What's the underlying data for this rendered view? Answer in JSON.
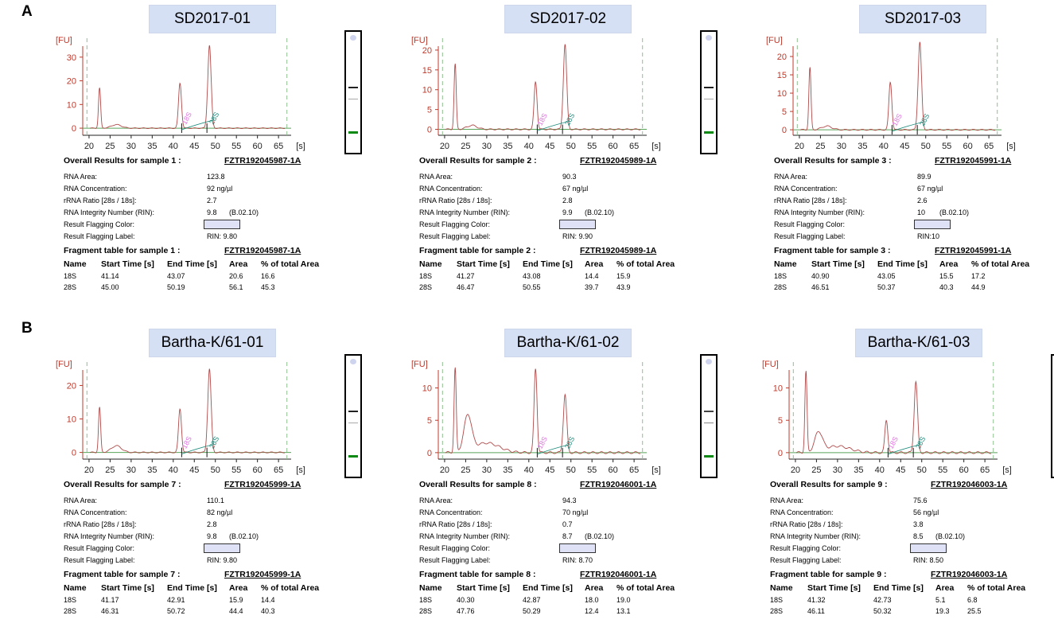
{
  "section_labels": [
    "A",
    "B"
  ],
  "chart_data": [
    {
      "type": "line",
      "title": "SD2017-01",
      "ylabel": "[FU]",
      "xunit": "[s]",
      "xlim": [
        18.5,
        68
      ],
      "xticks": [
        20,
        25,
        30,
        35,
        40,
        45,
        50,
        55,
        60,
        65
      ],
      "ylim": [
        -3,
        38
      ],
      "yticks": [
        0,
        10,
        20,
        30
      ],
      "markers": [
        19.5,
        67
      ],
      "bracket_points": [
        42,
        48
      ],
      "peak_labels": [
        {
          "text": "18S",
          "x": 43,
          "color": "#e070e0"
        },
        {
          "text": "28S",
          "x": 49.5,
          "color": "#1a8a7a"
        }
      ],
      "peaks": [
        {
          "x": 22.5,
          "h": 17,
          "w": 0.25
        },
        {
          "x": 26.5,
          "h": 1.5,
          "w": 1.2
        },
        {
          "x": 41.6,
          "h": 19,
          "w": 0.35
        },
        {
          "x": 48.6,
          "h": 35,
          "w": 0.4
        }
      ],
      "gel": {
        "band_color_top": "#222",
        "band_color_mid": "#aaa",
        "band_color_bottom": "#0a8a12"
      }
    },
    {
      "type": "line",
      "title": "SD2017-02",
      "ylabel": "[FU]",
      "xunit": "[s]",
      "xlim": [
        18.5,
        68
      ],
      "xticks": [
        20,
        25,
        30,
        35,
        40,
        45,
        50,
        55,
        60,
        65
      ],
      "ylim": [
        -1.5,
        23
      ],
      "yticks": [
        0,
        5,
        10,
        15,
        20
      ],
      "markers": [
        19.5,
        67
      ],
      "bracket_points": [
        42,
        48
      ],
      "peak_labels": [
        {
          "text": "18S",
          "x": 43,
          "color": "#e070e0"
        },
        {
          "text": "28S",
          "x": 49.5,
          "color": "#1a8a7a"
        }
      ],
      "peaks": [
        {
          "x": 22.5,
          "h": 16.5,
          "w": 0.25
        },
        {
          "x": 26.5,
          "h": 1,
          "w": 1.2
        },
        {
          "x": 41.6,
          "h": 12,
          "w": 0.35
        },
        {
          "x": 48.6,
          "h": 21.5,
          "w": 0.4
        }
      ],
      "gel": {
        "band_color_top": "#222",
        "band_color_mid": "#aaa",
        "band_color_bottom": "#0a8a12"
      }
    },
    {
      "type": "line",
      "title": "SD2017-03",
      "ylabel": "[FU]",
      "xunit": "[s]",
      "xlim": [
        18.5,
        68
      ],
      "xticks": [
        20,
        25,
        30,
        35,
        40,
        45,
        50,
        55,
        60,
        65
      ],
      "ylim": [
        -1.5,
        25
      ],
      "yticks": [
        0,
        5,
        10,
        15,
        20
      ],
      "markers": [
        19.5,
        67
      ],
      "bracket_points": [
        42,
        48
      ],
      "peak_labels": [
        {
          "text": "18S",
          "x": 43,
          "color": "#e070e0"
        },
        {
          "text": "28S",
          "x": 49.5,
          "color": "#1a8a7a"
        }
      ],
      "peaks": [
        {
          "x": 22.5,
          "h": 17,
          "w": 0.25
        },
        {
          "x": 26.5,
          "h": 1,
          "w": 1.2
        },
        {
          "x": 41.6,
          "h": 13,
          "w": 0.35
        },
        {
          "x": 48.6,
          "h": 24,
          "w": 0.4
        }
      ],
      "gel": {
        "band_color_top": "#222",
        "band_color_mid": "#aaa",
        "band_color_bottom": "#0a8a12"
      }
    },
    {
      "type": "line",
      "title": "Bartha-K/61-01",
      "ylabel": "[FU]",
      "xunit": "[s]",
      "xlim": [
        18.5,
        68
      ],
      "xticks": [
        20,
        25,
        30,
        35,
        40,
        45,
        50,
        55,
        60,
        65
      ],
      "ylim": [
        -2,
        27
      ],
      "yticks": [
        0,
        10,
        20
      ],
      "markers": [
        19.5,
        67
      ],
      "bracket_points": [
        42,
        48
      ],
      "peak_labels": [
        {
          "text": "18S",
          "x": 43,
          "color": "#e070e0"
        },
        {
          "text": "28S",
          "x": 49.5,
          "color": "#1a8a7a"
        }
      ],
      "peaks": [
        {
          "x": 22.5,
          "h": 13.5,
          "w": 0.25
        },
        {
          "x": 26.5,
          "h": 2,
          "w": 1.2
        },
        {
          "x": 41.6,
          "h": 13,
          "w": 0.35
        },
        {
          "x": 48.6,
          "h": 25,
          "w": 0.4
        }
      ],
      "gel": {
        "band_color_top": "#222",
        "band_color_mid": "#aaa",
        "band_color_bottom": "#0a8a12"
      }
    },
    {
      "type": "line",
      "title": "Bartha-K/61-02",
      "ylabel": "[FU]",
      "xunit": "[s]",
      "xlim": [
        18.5,
        68
      ],
      "xticks": [
        20,
        25,
        30,
        35,
        40,
        45,
        50,
        55,
        60,
        65
      ],
      "ylim": [
        -1,
        14
      ],
      "yticks": [
        0,
        5,
        10
      ],
      "markers": [
        19.5,
        67
      ],
      "bracket_points": [
        42,
        48
      ],
      "peak_labels": [
        {
          "text": "18S",
          "x": 43,
          "color": "#e070e0"
        },
        {
          "text": "28S",
          "x": 49.5,
          "color": "#1a8a7a"
        }
      ],
      "peaks": [
        {
          "x": 22.5,
          "h": 13,
          "w": 0.25
        },
        {
          "x": 25.5,
          "h": 5.5,
          "w": 0.9
        },
        {
          "x": 30,
          "h": 1.5,
          "w": 3
        },
        {
          "x": 41.6,
          "h": 13,
          "w": 0.35
        },
        {
          "x": 48.6,
          "h": 9,
          "w": 0.4
        }
      ],
      "gel": {
        "band_color_top": "#444",
        "band_color_mid": "#888",
        "band_color_bottom": "#0a8a12"
      }
    },
    {
      "type": "line",
      "title": "Bartha-K/61-03",
      "ylabel": "[FU]",
      "xunit": "[s]",
      "xlim": [
        18.5,
        68
      ],
      "xticks": [
        20,
        25,
        30,
        35,
        40,
        45,
        50,
        55,
        60,
        65
      ],
      "ylim": [
        -1,
        14
      ],
      "yticks": [
        0,
        5,
        10
      ],
      "markers": [
        19.5,
        67
      ],
      "bracket_points": [
        42,
        48
      ],
      "peak_labels": [
        {
          "text": "18S",
          "x": 43,
          "color": "#e070e0"
        },
        {
          "text": "28S",
          "x": 49.5,
          "color": "#1a8a7a"
        }
      ],
      "peaks": [
        {
          "x": 22.5,
          "h": 12.5,
          "w": 0.25
        },
        {
          "x": 25.5,
          "h": 3,
          "w": 0.9
        },
        {
          "x": 30,
          "h": 1,
          "w": 3
        },
        {
          "x": 41.6,
          "h": 5,
          "w": 0.35
        },
        {
          "x": 48.6,
          "h": 11,
          "w": 0.4
        }
      ],
      "gel": {
        "band_color_top": "#444",
        "band_color_mid": "#888",
        "band_color_bottom": "#0a8a12"
      }
    }
  ],
  "panels": [
    {
      "overall_label": "Overall Results for sample 1 :",
      "sample_id": "FZTR192045987-1A",
      "rows": [
        {
          "label": "RNA Area:",
          "value": "123.8"
        },
        {
          "label": "RNA Concentration:",
          "value": "92 ng/µl"
        },
        {
          "label": "rRNA Ratio [28s / 18s]:",
          "value": "2.7"
        },
        {
          "label": "RNA Integrity Number (RIN):",
          "value": "9.8",
          "sub": "(B.02.10)"
        },
        {
          "label": "Result Flagging Color:",
          "flag": true
        },
        {
          "label": "Result Flagging Label:",
          "value": "RIN: 9.80"
        }
      ],
      "frag_label": "Fragment table for sample 1 :",
      "frag_id": "FZTR192045987-1A",
      "frag_headers": [
        "Name",
        "Start Time [s]",
        "End Time [s]",
        "Area",
        "% of total Area"
      ],
      "frag_rows": [
        [
          "18S",
          "41.14",
          "43.07",
          "20.6",
          "16.6"
        ],
        [
          "28S",
          "45.00",
          "50.19",
          "56.1",
          "45.3"
        ]
      ]
    },
    {
      "overall_label": "Overall Results for sample 2 :",
      "sample_id": "FZTR192045989-1A",
      "rows": [
        {
          "label": "RNA Area:",
          "value": "90.3"
        },
        {
          "label": "RNA Concentration:",
          "value": "67 ng/µl"
        },
        {
          "label": "rRNA Ratio [28s / 18s]:",
          "value": "2.8"
        },
        {
          "label": "RNA Integrity Number (RIN):",
          "value": "9.9",
          "sub": "(B.02.10)"
        },
        {
          "label": "Result Flagging Color:",
          "flag": true
        },
        {
          "label": "Result Flagging Label:",
          "value": "RIN: 9.90"
        }
      ],
      "frag_label": "Fragment table for sample 2 :",
      "frag_id": "FZTR192045989-1A",
      "frag_headers": [
        "Name",
        "Start Time [s]",
        "End Time [s]",
        "Area",
        "% of total Area"
      ],
      "frag_rows": [
        [
          "18S",
          "41.27",
          "43.08",
          "14.4",
          "15.9"
        ],
        [
          "28S",
          "46.47",
          "50.55",
          "39.7",
          "43.9"
        ]
      ]
    },
    {
      "overall_label": "Overall Results for sample 3 :",
      "sample_id": "FZTR192045991-1A",
      "rows": [
        {
          "label": "RNA Area:",
          "value": "89.9"
        },
        {
          "label": "RNA Concentration:",
          "value": "67 ng/µl"
        },
        {
          "label": "rRNA Ratio [28s / 18s]:",
          "value": "2.6"
        },
        {
          "label": "RNA Integrity Number (RIN):",
          "value": "10",
          "sub": "(B.02.10)"
        },
        {
          "label": "Result Flagging Color:",
          "flag": true
        },
        {
          "label": "Result Flagging Label:",
          "value": "RIN:10"
        }
      ],
      "frag_label": "Fragment table for sample 3 :",
      "frag_id": "FZTR192045991-1A",
      "frag_headers": [
        "Name",
        "Start Time [s]",
        "End Time [s]",
        "Area",
        "% of total Area"
      ],
      "frag_rows": [
        [
          "18S",
          "40.90",
          "43.05",
          "15.5",
          "17.2"
        ],
        [
          "28S",
          "46.51",
          "50.37",
          "40.3",
          "44.9"
        ]
      ]
    },
    {
      "overall_label": "Overall Results for sample 7 :",
      "sample_id": "FZTR192045999-1A",
      "rows": [
        {
          "label": "RNA Area:",
          "value": "110.1"
        },
        {
          "label": "RNA Concentration:",
          "value": "82 ng/µl"
        },
        {
          "label": "rRNA Ratio [28s / 18s]:",
          "value": "2.8"
        },
        {
          "label": "RNA Integrity Number (RIN):",
          "value": "9.8",
          "sub": "(B.02.10)"
        },
        {
          "label": "Result Flagging Color:",
          "flag": true
        },
        {
          "label": "Result Flagging Label:",
          "value": "RIN: 9.80"
        }
      ],
      "frag_label": "Fragment table for sample 7 :",
      "frag_id": "FZTR192045999-1A",
      "frag_headers": [
        "Name",
        "Start Time [s]",
        "End Time [s]",
        "Area",
        "% of total Area"
      ],
      "frag_rows": [
        [
          "18S",
          "41.17",
          "42.91",
          "15.9",
          "14.4"
        ],
        [
          "28S",
          "46.31",
          "50.72",
          "44.4",
          "40.3"
        ]
      ]
    },
    {
      "overall_label": "Overall Results for sample 8 :",
      "sample_id": "FZTR192046001-1A",
      "rows": [
        {
          "label": "RNA Area:",
          "value": "94.3"
        },
        {
          "label": "RNA Concentration:",
          "value": "70 ng/µl"
        },
        {
          "label": "rRNA Ratio [28s / 18s]:",
          "value": "0.7"
        },
        {
          "label": "RNA Integrity Number (RIN):",
          "value": "8.7",
          "sub": "(B.02.10)"
        },
        {
          "label": "Result Flagging Color:",
          "flag": true
        },
        {
          "label": "Result Flagging Label:",
          "value": "RIN: 8.70"
        }
      ],
      "frag_label": "Fragment table for sample 8 :",
      "frag_id": "FZTR192046001-1A",
      "frag_headers": [
        "Name",
        "Start Time [s]",
        "End Time [s]",
        "Area",
        "% of total Area"
      ],
      "frag_rows": [
        [
          "18S",
          "40.30",
          "42.87",
          "18.0",
          "19.0"
        ],
        [
          "28S",
          "47.76",
          "50.29",
          "12.4",
          "13.1"
        ]
      ]
    },
    {
      "overall_label": "Overall Results for sample 9 :",
      "sample_id": "FZTR192046003-1A",
      "rows": [
        {
          "label": "RNA Area:",
          "value": "75.6"
        },
        {
          "label": "RNA Concentration:",
          "value": "56 ng/µl"
        },
        {
          "label": "rRNA Ratio [28s / 18s]:",
          "value": "3.8"
        },
        {
          "label": "RNA Integrity Number (RIN):",
          "value": "8.5",
          "sub": "(B.02.10)"
        },
        {
          "label": "Result Flagging Color:",
          "flag": true
        },
        {
          "label": "Result Flagging Label:",
          "value": "RIN: 8.50"
        }
      ],
      "frag_label": "Fragment table for sample 9 :",
      "frag_id": "FZTR192046003-1A",
      "frag_headers": [
        "Name",
        "Start Time [s]",
        "End Time [s]",
        "Area",
        "% of total Area"
      ],
      "frag_rows": [
        [
          "18S",
          "41.32",
          "42.73",
          "5.1",
          "6.8"
        ],
        [
          "28S",
          "46.11",
          "50.32",
          "19.3",
          "25.5"
        ]
      ]
    }
  ]
}
